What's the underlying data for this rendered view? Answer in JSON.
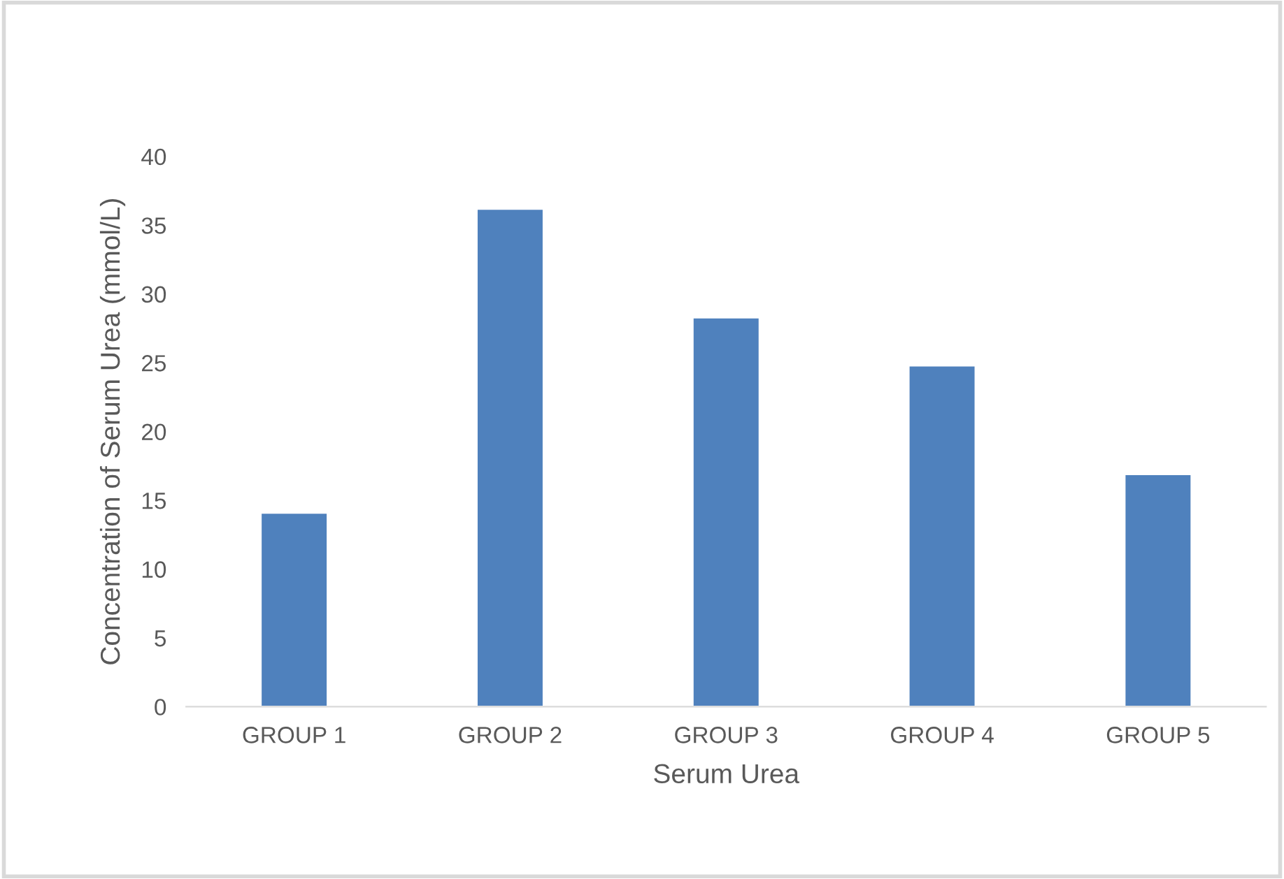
{
  "chart_data": {
    "type": "bar",
    "xlabel": "Serum Urea",
    "ylabel": "Concentration of Serum Urea (mmol/L)",
    "categories": [
      "GROUP 1",
      "GROUP 2",
      "GROUP 3",
      "GROUP 4",
      "GROUP 5"
    ],
    "values": [
      14.1,
      36.2,
      28.3,
      24.8,
      16.9
    ],
    "color": "#4f81bd",
    "ylim": [
      0,
      40
    ],
    "yticks": [
      0,
      5,
      10,
      15,
      20,
      25,
      30,
      35,
      40
    ],
    "grid": false
  }
}
